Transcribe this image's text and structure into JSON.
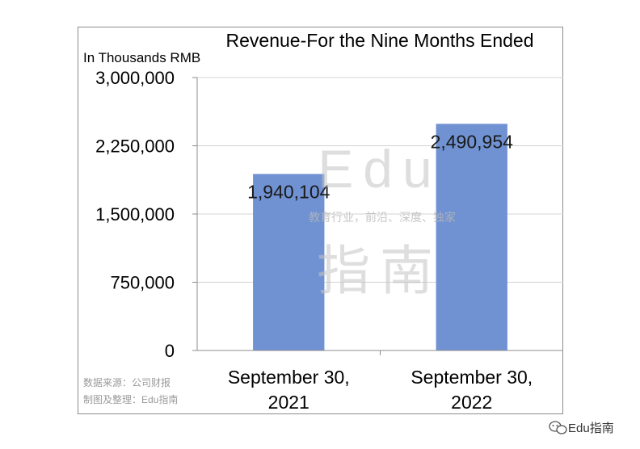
{
  "chart_data": {
    "type": "bar",
    "title": "Revenue-For the Nine Months Ended",
    "unit_label": "In Thousands RMB",
    "categories": [
      "September 30, 2021",
      "September 30, 2022"
    ],
    "category_lines": [
      [
        "September 30,",
        "2021"
      ],
      [
        "September 30,",
        "2022"
      ]
    ],
    "values": [
      1940104,
      2490954
    ],
    "data_labels": [
      "1,940,104",
      "2,490,954"
    ],
    "ylim": [
      0,
      3000000
    ],
    "yticks": [
      0,
      750000,
      1500000,
      2250000,
      3000000
    ],
    "ytick_labels": [
      "0",
      "750,000",
      "1,500,000",
      "2,250,000",
      "3,000,000"
    ],
    "grid": true,
    "bar_color": "#7092d2"
  },
  "source_lines": [
    "数据来源：公司财报",
    "制图及整理：Edu指南"
  ],
  "watermark": {
    "big_top": "Edu",
    "tagline": "教育行业，前沿、深度、独家",
    "big_bottom": "指南"
  },
  "brand": "Edu指南",
  "brand_icon": "wechat-icon"
}
